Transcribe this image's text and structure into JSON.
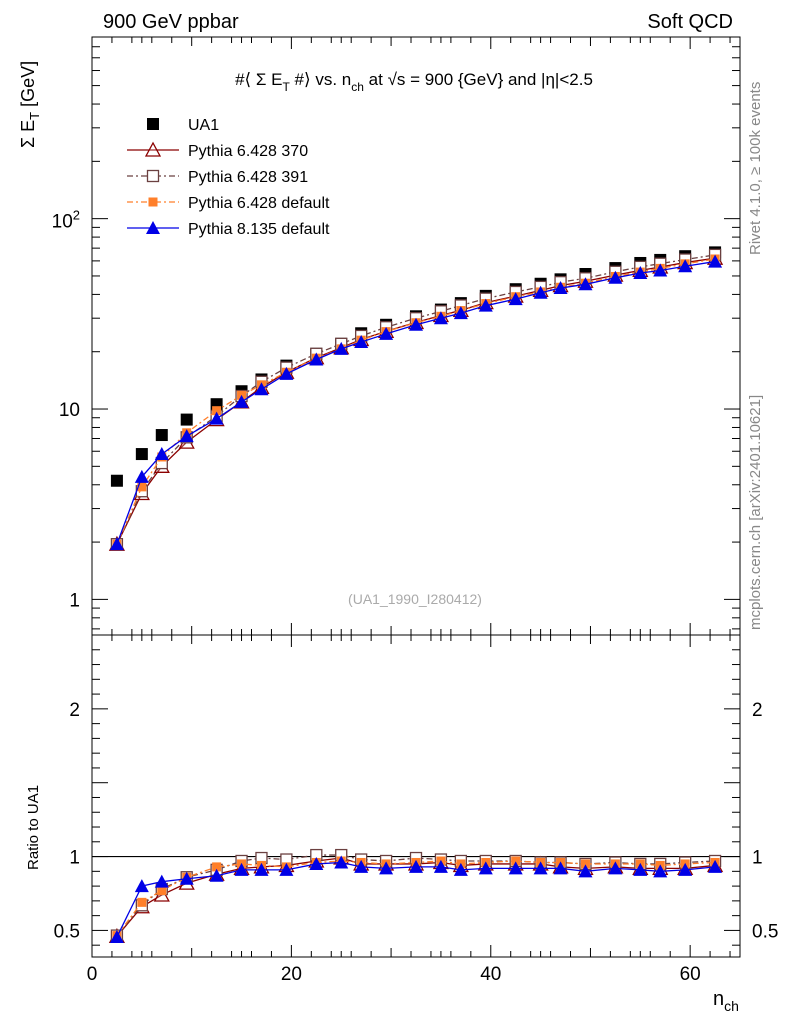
{
  "header": {
    "left": "900 GeV ppbar",
    "right": "Soft QCD"
  },
  "side_labels": {
    "rivet": "Rivet 4.1.0, ≥ 100k events",
    "mcplots": "mcplots.cern.ch [arXiv:2401.10621]"
  },
  "watermark": "(UA1_1990_I280412)",
  "title_parts": {
    "p1": "#⟨ Σ E",
    "sub1": "T",
    "p2": " #⟩ vs. n",
    "sub2": "ch",
    "p3": " at √s = 900 {GeV} and |η|<2.5"
  },
  "ylabel_main": {
    "p1": "Σ E",
    "sub": "T",
    "p2": " [GeV]"
  },
  "ylabel_ratio": "Ratio to UA1",
  "xlabel": {
    "p1": "n",
    "sub": "ch"
  },
  "colors": {
    "data": "#000000",
    "py370": "#8b0000",
    "py391": "#6b4040",
    "py6def": "#ff7f2a",
    "py8": "#0000e6"
  },
  "chart_data": [
    {
      "type": "scatter",
      "panel": "main",
      "title": "#⟨ Σ ET #⟩ vs. nch at √s = 900 {GeV} and |η|<2.5",
      "xlabel": "nch",
      "ylabel": "Σ ET [GeV]",
      "yscale": "log",
      "xlim": [
        0,
        65
      ],
      "ylim": [
        0.65,
        900
      ],
      "xticks": [
        "0",
        "20",
        "40",
        "60"
      ],
      "yticks": [
        "1",
        "10",
        "10^2"
      ],
      "legend_position": "top-left",
      "x": [
        2.5,
        5,
        7,
        9.5,
        12.5,
        15,
        17,
        19.5,
        22.5,
        25,
        27,
        29.5,
        32.5,
        35,
        37,
        39.5,
        42.5,
        45,
        47,
        49.5,
        52.5,
        55,
        57,
        59.5,
        62.5
      ],
      "series": [
        {
          "name": "UA1",
          "key": "data",
          "marker": "square",
          "values": [
            4.2,
            5.8,
            7.3,
            8.8,
            10.6,
            12.4,
            14.3,
            16.9,
            19.5,
            22.0,
            25.0,
            27.7,
            30.7,
            33.3,
            36.0,
            39.3,
            42.6,
            45.5,
            48.0,
            51.2,
            55.0,
            58.5,
            60.7,
            63.5,
            66.5
          ]
        },
        {
          "name": "Pythia 6.428 370",
          "key": "py370",
          "marker": "triangle-open",
          "dash": "",
          "values": [
            1.95,
            3.6,
            5.0,
            6.7,
            8.8,
            10.9,
            13.0,
            15.6,
            18.6,
            21.0,
            23.2,
            25.6,
            28.5,
            31.0,
            33.0,
            36.2,
            39.2,
            42.0,
            44.5,
            46.9,
            50.5,
            53.5,
            55.7,
            58.8,
            62.0
          ]
        },
        {
          "name": "Pythia 6.428 391",
          "key": "py391",
          "marker": "square-open",
          "dash": "6,3,2,3",
          "values": [
            1.95,
            3.7,
            5.2,
            7.1,
            9.2,
            11.7,
            13.9,
            16.5,
            19.5,
            22.0,
            24.2,
            26.9,
            30.0,
            32.6,
            35.0,
            38.0,
            41.2,
            43.8,
            46.4,
            48.6,
            52.6,
            55.8,
            58.0,
            61.0,
            64.5
          ]
        },
        {
          "name": "Pythia 6.428 default",
          "key": "py6def",
          "marker": "square-filled-small",
          "dash": "6,3,2,3",
          "values": [
            1.95,
            3.9,
            5.6,
            7.5,
            9.8,
            11.8,
            13.4,
            15.6,
            18.5,
            20.7,
            23.0,
            25.5,
            28.4,
            30.7,
            32.9,
            35.8,
            38.9,
            41.2,
            43.6,
            45.8,
            49.7,
            52.4,
            54.8,
            57.9,
            61.4
          ]
        },
        {
          "name": "Pythia 8.135 default",
          "key": "py8",
          "marker": "triangle-filled",
          "dash": "",
          "values": [
            1.95,
            4.4,
            5.8,
            7.2,
            8.9,
            10.9,
            12.7,
            15.3,
            18.2,
            20.7,
            22.5,
            24.8,
            27.7,
            30.0,
            31.9,
            34.9,
            37.8,
            40.8,
            43.2,
            45.2,
            48.9,
            51.8,
            53.4,
            56.2,
            59.5
          ]
        }
      ]
    },
    {
      "type": "scatter",
      "panel": "ratio",
      "ylabel": "Ratio to UA1",
      "xlabel": "nch",
      "xlim": [
        0,
        65
      ],
      "ylim": [
        0.32,
        2.5
      ],
      "yticks": [
        "0.5",
        "1",
        "2"
      ],
      "reference_line": 1,
      "x": [
        2.5,
        5,
        7,
        9.5,
        12.5,
        15,
        17,
        19.5,
        22.5,
        25,
        27,
        29.5,
        32.5,
        35,
        37,
        39.5,
        42.5,
        45,
        47,
        49.5,
        52.5,
        55,
        57,
        59.5,
        62.5
      ],
      "series": [
        {
          "name": "Pythia 6.428 370",
          "key": "py370",
          "marker": "triangle-open",
          "dash": "",
          "values": [
            0.46,
            0.66,
            0.74,
            0.82,
            0.88,
            0.92,
            0.93,
            0.94,
            0.97,
            0.99,
            0.95,
            0.95,
            0.95,
            0.96,
            0.94,
            0.95,
            0.95,
            0.95,
            0.93,
            0.92,
            0.93,
            0.92,
            0.92,
            0.92,
            0.94
          ]
        },
        {
          "name": "Pythia 6.428 391",
          "key": "py391",
          "marker": "square-open",
          "dash": "6,3,2,3",
          "values": [
            0.465,
            0.67,
            0.78,
            0.86,
            0.91,
            0.97,
            0.99,
            0.98,
            1.01,
            1.01,
            0.98,
            0.97,
            0.99,
            0.98,
            0.97,
            0.97,
            0.97,
            0.96,
            0.96,
            0.95,
            0.96,
            0.95,
            0.95,
            0.96,
            0.97
          ]
        },
        {
          "name": "Pythia 6.428 default",
          "key": "py6def",
          "marker": "square-filled-small",
          "dash": "6,3,2,3",
          "values": [
            0.465,
            0.69,
            0.77,
            0.86,
            0.93,
            0.95,
            0.94,
            0.93,
            0.96,
            0.97,
            0.96,
            0.95,
            0.96,
            0.97,
            0.95,
            0.96,
            0.97,
            0.96,
            0.96,
            0.95,
            0.95,
            0.95,
            0.94,
            0.95,
            0.96
          ]
        },
        {
          "name": "Pythia 8.135 default",
          "key": "py8",
          "marker": "triangle-filled",
          "dash": "",
          "values": [
            0.455,
            0.8,
            0.83,
            0.85,
            0.87,
            0.91,
            0.91,
            0.91,
            0.95,
            0.96,
            0.93,
            0.92,
            0.93,
            0.93,
            0.91,
            0.92,
            0.92,
            0.92,
            0.92,
            0.9,
            0.92,
            0.91,
            0.9,
            0.91,
            0.93
          ]
        }
      ]
    }
  ]
}
